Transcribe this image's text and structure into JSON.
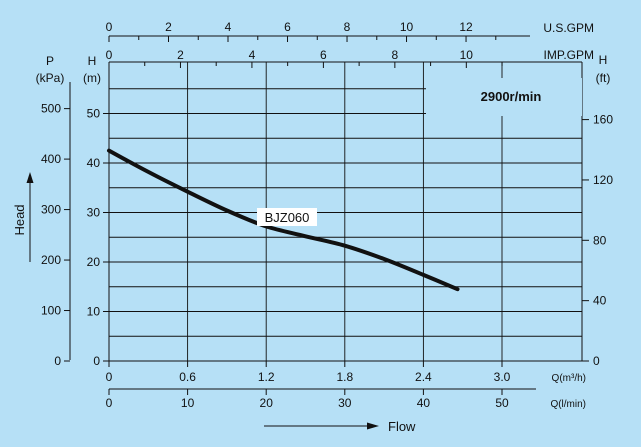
{
  "colors": {
    "background": "#b6e0f6",
    "grid": "#111111",
    "curve": "#111111"
  },
  "chart_data": {
    "type": "line",
    "series": [
      {
        "name": "BJZ060",
        "x": [
          0,
          0.3,
          0.6,
          0.9,
          1.2,
          1.5,
          1.8,
          2.1,
          2.4,
          2.66
        ],
        "y": [
          42.5,
          38.2,
          34.2,
          30.4,
          27.2,
          25.2,
          23.3,
          20.6,
          17.4,
          14.5
        ]
      }
    ],
    "curve_label": "BJZ060",
    "speed_label": "2900r/min",
    "x_axis": {
      "unit": "Q(m³/h)",
      "range": [
        0,
        3.36
      ],
      "ticks": [
        "0",
        "0.6",
        "1.2",
        "1.8",
        "2.4",
        "3.0"
      ],
      "tick_values": [
        0,
        0.6,
        1.2,
        1.8,
        2.4,
        3.0
      ]
    },
    "x_axis_lmin": {
      "unit": "Q(l/min)",
      "ticks": [
        "0",
        "10",
        "20",
        "30",
        "40",
        "50"
      ],
      "tick_values": [
        0,
        10,
        20,
        30,
        40,
        50
      ]
    },
    "x_axis_usgpm": {
      "unit": "U.S.GPM",
      "ticks": [
        "0",
        "2",
        "4",
        "6",
        "8",
        "10",
        "12"
      ],
      "tick_values": [
        0,
        2,
        4,
        6,
        8,
        10,
        12
      ]
    },
    "x_axis_impgpm": {
      "unit": "IMP.GPM",
      "ticks": [
        "0",
        "2",
        "4",
        "6",
        "8",
        "10"
      ],
      "tick_values": [
        0,
        2,
        4,
        6,
        8,
        10
      ]
    },
    "y_axis_m": {
      "label_top": "H",
      "unit": "(m)",
      "range": [
        0,
        60
      ],
      "ticks": [
        "0",
        "10",
        "20",
        "30",
        "40",
        "50"
      ],
      "tick_values": [
        0,
        10,
        20,
        30,
        40,
        50
      ]
    },
    "y_axis_kpa": {
      "label_top": "P",
      "unit": "(kPa)",
      "ticks": [
        "0",
        "100",
        "200",
        "300",
        "400",
        "500"
      ],
      "tick_values": [
        0,
        100,
        200,
        300,
        400,
        500
      ]
    },
    "y_axis_ft": {
      "label_top": "H",
      "unit": "(ft)",
      "ticks": [
        "0",
        "40",
        "80",
        "120",
        "160"
      ],
      "tick_values": [
        0,
        40,
        80,
        120,
        160
      ]
    },
    "ylabel": "Head",
    "xlabel": "Flow",
    "grid": true
  }
}
